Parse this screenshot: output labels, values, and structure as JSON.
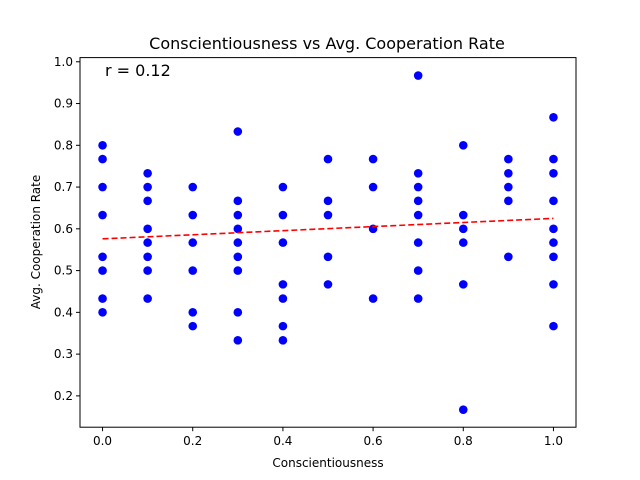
{
  "chart_data": {
    "type": "scatter",
    "title": "Conscientiousness vs Avg. Cooperation Rate",
    "xlabel": "Conscientiousness",
    "ylabel": "Avg. Cooperation Rate",
    "xlim": [
      -0.05,
      1.05
    ],
    "ylim": [
      0.125,
      1.01
    ],
    "x_ticks": [
      0.0,
      0.2,
      0.4,
      0.6,
      0.8,
      1.0
    ],
    "x_tick_labels": [
      "0.0",
      "0.2",
      "0.4",
      "0.6",
      "0.8",
      "1.0"
    ],
    "y_ticks": [
      0.2,
      0.3,
      0.4,
      0.5,
      0.6,
      0.7,
      0.8,
      0.9,
      1.0
    ],
    "y_tick_labels": [
      "0.2",
      "0.3",
      "0.4",
      "0.5",
      "0.6",
      "0.7",
      "0.8",
      "0.9",
      "1.0"
    ],
    "grid": false,
    "annotation": "r = 0.12",
    "point_color": "#0000ff",
    "trend_color": "#ff0000",
    "points": [
      [
        0.0,
        0.8
      ],
      [
        0.0,
        0.767
      ],
      [
        0.0,
        0.7
      ],
      [
        0.0,
        0.633
      ],
      [
        0.0,
        0.533
      ],
      [
        0.0,
        0.5
      ],
      [
        0.0,
        0.433
      ],
      [
        0.0,
        0.4
      ],
      [
        0.1,
        0.733
      ],
      [
        0.1,
        0.7
      ],
      [
        0.1,
        0.667
      ],
      [
        0.1,
        0.6
      ],
      [
        0.1,
        0.567
      ],
      [
        0.1,
        0.533
      ],
      [
        0.1,
        0.5
      ],
      [
        0.1,
        0.433
      ],
      [
        0.2,
        0.7
      ],
      [
        0.2,
        0.633
      ],
      [
        0.2,
        0.567
      ],
      [
        0.2,
        0.5
      ],
      [
        0.2,
        0.4
      ],
      [
        0.2,
        0.367
      ],
      [
        0.3,
        0.833
      ],
      [
        0.3,
        0.667
      ],
      [
        0.3,
        0.633
      ],
      [
        0.3,
        0.6
      ],
      [
        0.3,
        0.567
      ],
      [
        0.3,
        0.533
      ],
      [
        0.3,
        0.5
      ],
      [
        0.3,
        0.4
      ],
      [
        0.3,
        0.333
      ],
      [
        0.4,
        0.7
      ],
      [
        0.4,
        0.633
      ],
      [
        0.4,
        0.567
      ],
      [
        0.4,
        0.467
      ],
      [
        0.4,
        0.433
      ],
      [
        0.4,
        0.367
      ],
      [
        0.4,
        0.333
      ],
      [
        0.5,
        0.767
      ],
      [
        0.5,
        0.667
      ],
      [
        0.5,
        0.633
      ],
      [
        0.5,
        0.533
      ],
      [
        0.5,
        0.467
      ],
      [
        0.6,
        0.767
      ],
      [
        0.6,
        0.7
      ],
      [
        0.6,
        0.6
      ],
      [
        0.6,
        0.433
      ],
      [
        0.7,
        0.967
      ],
      [
        0.7,
        0.733
      ],
      [
        0.7,
        0.7
      ],
      [
        0.7,
        0.667
      ],
      [
        0.7,
        0.633
      ],
      [
        0.7,
        0.567
      ],
      [
        0.7,
        0.5
      ],
      [
        0.7,
        0.433
      ],
      [
        0.8,
        0.8
      ],
      [
        0.8,
        0.633
      ],
      [
        0.8,
        0.6
      ],
      [
        0.8,
        0.567
      ],
      [
        0.8,
        0.467
      ],
      [
        0.8,
        0.167
      ],
      [
        0.9,
        0.767
      ],
      [
        0.9,
        0.733
      ],
      [
        0.9,
        0.7
      ],
      [
        0.9,
        0.667
      ],
      [
        0.9,
        0.533
      ],
      [
        1.0,
        0.867
      ],
      [
        1.0,
        0.767
      ],
      [
        1.0,
        0.733
      ],
      [
        1.0,
        0.667
      ],
      [
        1.0,
        0.6
      ],
      [
        1.0,
        0.567
      ],
      [
        1.0,
        0.533
      ],
      [
        1.0,
        0.467
      ],
      [
        1.0,
        0.367
      ]
    ],
    "trend_line": {
      "x": [
        0.0,
        1.0
      ],
      "y": [
        0.576,
        0.625
      ]
    }
  }
}
